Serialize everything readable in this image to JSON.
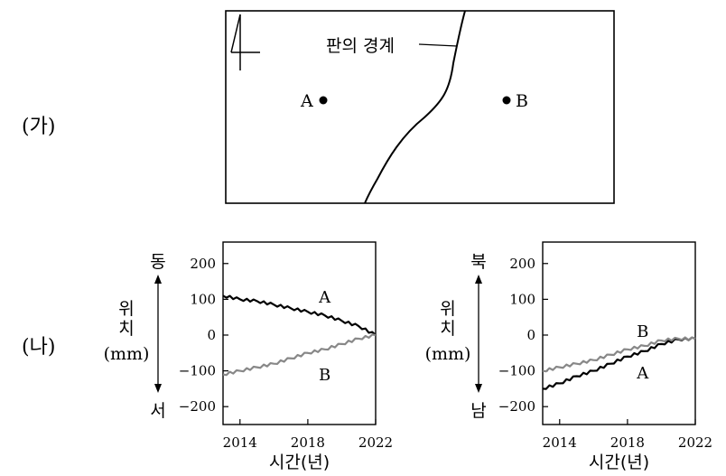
{
  "part_a": {
    "label": "(가)",
    "boundary_label": "판의 경계",
    "point_a": "A",
    "point_b": "B",
    "north_symbol": "4"
  },
  "part_b": {
    "label": "(나)",
    "panels": [
      {
        "axis_top": "동",
        "axis_bottom": "서",
        "axis_name": "위\n치",
        "unit": "(mm)",
        "xlabel": "시간(년)"
      },
      {
        "axis_top": "북",
        "axis_bottom": "남",
        "axis_name": "위\n치",
        "unit": "(mm)",
        "xlabel": "시간(년)"
      }
    ]
  },
  "chart_data": [
    {
      "type": "line",
      "xlabel": "시간(년)",
      "ylabel": "위치 (mm)",
      "xlim": [
        2013,
        2022
      ],
      "ylim": [
        -250,
        260
      ],
      "xticks": [
        2014,
        2018,
        2022
      ],
      "yticks": [
        200,
        100,
        0,
        -100,
        -200
      ],
      "series": [
        {
          "name": "A",
          "color": "#000000",
          "x": [
            2013,
            2014,
            2015,
            2016,
            2017,
            2018,
            2019,
            2020,
            2021,
            2022
          ],
          "y": [
            110,
            100,
            95,
            85,
            75,
            65,
            55,
            40,
            25,
            0
          ]
        },
        {
          "name": "B",
          "color": "#888888",
          "x": [
            2013,
            2014,
            2015,
            2016,
            2017,
            2018,
            2019,
            2020,
            2021,
            2022
          ],
          "y": [
            -110,
            -100,
            -90,
            -80,
            -65,
            -50,
            -40,
            -25,
            -10,
            0
          ]
        }
      ]
    },
    {
      "type": "line",
      "xlabel": "시간(년)",
      "ylabel": "위치 (mm)",
      "xlim": [
        2013,
        2022
      ],
      "ylim": [
        -250,
        260
      ],
      "xticks": [
        2014,
        2018,
        2022
      ],
      "yticks": [
        200,
        100,
        0,
        -100,
        -200
      ],
      "series": [
        {
          "name": "A",
          "color": "#000000",
          "x": [
            2013,
            2014,
            2015,
            2016,
            2017,
            2018,
            2019,
            2020,
            2021,
            2022
          ],
          "y": [
            -150,
            -135,
            -115,
            -100,
            -80,
            -60,
            -45,
            -25,
            -12,
            -10
          ]
        },
        {
          "name": "B",
          "color": "#888888",
          "x": [
            2013,
            2014,
            2015,
            2016,
            2017,
            2018,
            2019,
            2020,
            2021,
            2022
          ],
          "y": [
            -100,
            -90,
            -80,
            -70,
            -55,
            -40,
            -30,
            -15,
            -10,
            -10
          ]
        }
      ]
    }
  ]
}
